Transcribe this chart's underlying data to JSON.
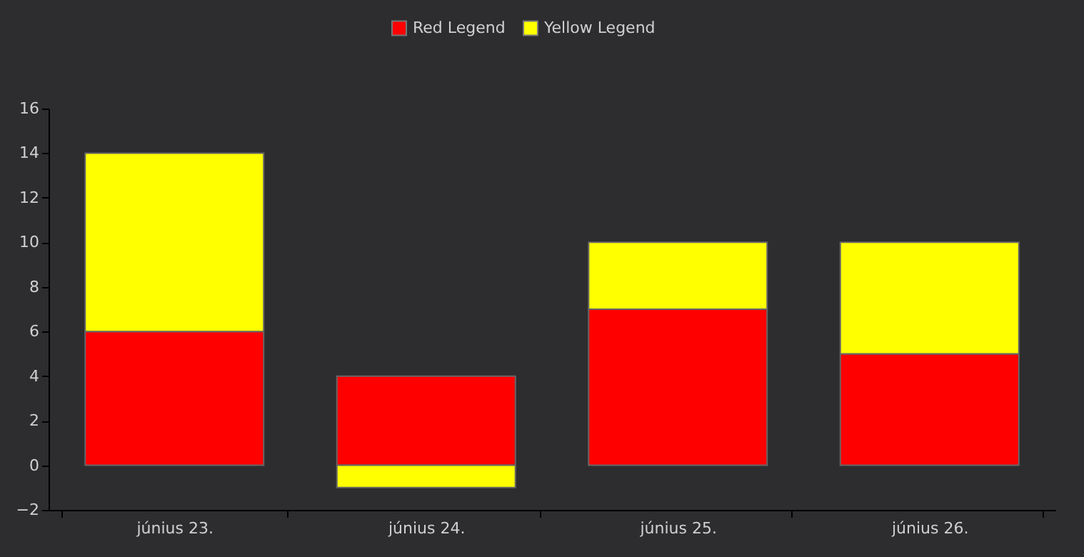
{
  "chart_data": {
    "type": "bar",
    "stacked": true,
    "categories": [
      "június 23.",
      "június 24.",
      "június 25.",
      "június 26."
    ],
    "series": [
      {
        "name": "Red Legend",
        "color": "#ff0000",
        "values": [
          6,
          4,
          7,
          5
        ]
      },
      {
        "name": "Yellow Legend",
        "color": "#ffff00",
        "values": [
          8,
          -1,
          3,
          5
        ]
      }
    ],
    "ylim": [
      -2,
      16
    ],
    "yticks": [
      -2,
      0,
      2,
      4,
      6,
      8,
      10,
      12,
      14,
      16
    ],
    "grid": false,
    "legend": "top"
  }
}
